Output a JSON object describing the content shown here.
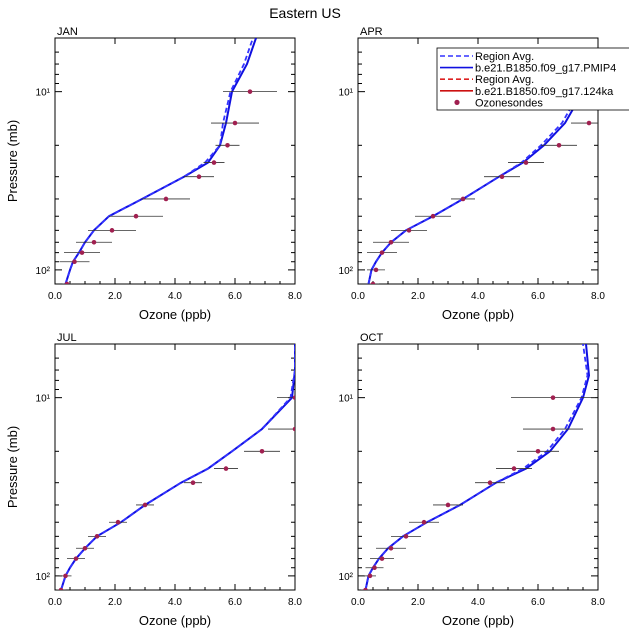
{
  "figure_title": "Eastern US",
  "colors": {
    "region_avg_1": "#3333ff",
    "model_1": "#1010e0",
    "region_avg_2": "#dd2222",
    "model_2": "#cc1111",
    "ozonesondes": "#a02050",
    "error_bar": "#333333"
  },
  "legend": {
    "entries": [
      {
        "label": "Region Avg.",
        "style": "dashed",
        "color": "#3333ff"
      },
      {
        "label": "b.e21.B1850.f09_g17.PMIP4",
        "style": "solid",
        "color": "#1010e0"
      },
      {
        "label": "Region Avg.",
        "style": "dashed",
        "color": "#dd2222"
      },
      {
        "label": "b.e21.B1850.f09_g17.124ka",
        "style": "solid",
        "color": "#cc1111"
      },
      {
        "label": "Ozonesondes",
        "style": "marker",
        "color": "#a02050"
      }
    ]
  },
  "chart_data": [
    {
      "panel": "JAN",
      "type": "line",
      "xlabel": "Ozone (ppb)",
      "ylabel": "Pressure (mb)",
      "xlim": [
        0,
        8
      ],
      "ylim_log": [
        120,
        5
      ],
      "x_ticks": [
        "0.0",
        "2.0",
        "4.0",
        "6.0",
        "8.0"
      ],
      "y_ticks": [
        "10²",
        "10¹"
      ],
      "series": [
        {
          "name": "b.e21.B1850.f09_g17.PMIP4",
          "style": "solid",
          "pressure": [
            120,
            100,
            90,
            80,
            70,
            60,
            50,
            40,
            30,
            25,
            20,
            15,
            10,
            7,
            5
          ],
          "values": [
            0.35,
            0.5,
            0.6,
            0.8,
            1.0,
            1.3,
            1.8,
            2.9,
            4.3,
            5.1,
            5.5,
            5.7,
            5.9,
            6.4,
            6.7
          ]
        },
        {
          "name": "Region Avg.",
          "style": "dashed",
          "pressure": [
            120,
            100,
            90,
            80,
            70,
            60,
            50,
            40,
            30,
            25,
            20,
            15,
            10,
            7,
            5
          ],
          "values": [
            0.35,
            0.5,
            0.6,
            0.8,
            1.0,
            1.3,
            1.8,
            2.9,
            4.3,
            5.0,
            5.5,
            5.6,
            5.85,
            6.3,
            6.6
          ]
        }
      ],
      "ozonesondes": [
        {
          "p": 120,
          "x": 0.4,
          "xerr": 0.15
        },
        {
          "p": 90,
          "x": 0.65,
          "xerr": 0.5
        },
        {
          "p": 80,
          "x": 0.9,
          "xerr": 0.6
        },
        {
          "p": 70,
          "x": 1.3,
          "xerr": 0.6
        },
        {
          "p": 60,
          "x": 1.9,
          "xerr": 0.8
        },
        {
          "p": 50,
          "x": 2.7,
          "xerr": 0.9
        },
        {
          "p": 40,
          "x": 3.7,
          "xerr": 0.8
        },
        {
          "p": 30,
          "x": 4.8,
          "xerr": 0.5
        },
        {
          "p": 25,
          "x": 5.3,
          "xerr": 0.35
        },
        {
          "p": 20,
          "x": 5.75,
          "xerr": 0.4
        },
        {
          "p": 15,
          "x": 6.0,
          "xerr": 0.8
        },
        {
          "p": 10,
          "x": 6.5,
          "xerr": 0.9
        }
      ]
    },
    {
      "panel": "APR",
      "type": "line",
      "xlabel": "Ozone (ppb)",
      "ylabel": "",
      "xlim": [
        0,
        8
      ],
      "ylim_log": [
        120,
        5
      ],
      "x_ticks": [
        "0.0",
        "2.0",
        "4.0",
        "6.0",
        "8.0"
      ],
      "y_ticks": [
        "10²",
        "10¹"
      ],
      "series": [
        {
          "name": "b.e21.B1850.f09_g17.PMIP4",
          "style": "solid",
          "pressure": [
            120,
            100,
            90,
            80,
            70,
            60,
            50,
            40,
            30,
            25,
            20,
            15,
            10,
            7,
            5
          ],
          "values": [
            0.35,
            0.45,
            0.6,
            0.8,
            1.1,
            1.6,
            2.5,
            3.5,
            4.7,
            5.5,
            6.2,
            6.9,
            7.5,
            8.0,
            8.3
          ]
        },
        {
          "name": "Region Avg.",
          "style": "dashed",
          "pressure": [
            120,
            100,
            90,
            80,
            70,
            60,
            50,
            40,
            30,
            25,
            20,
            15,
            10,
            7,
            5
          ],
          "values": [
            0.35,
            0.45,
            0.6,
            0.8,
            1.1,
            1.6,
            2.5,
            3.5,
            4.7,
            5.45,
            6.1,
            6.8,
            7.4,
            7.9,
            8.2
          ]
        }
      ],
      "ozonesondes": [
        {
          "p": 120,
          "x": 0.5,
          "xerr": 0.2
        },
        {
          "p": 100,
          "x": 0.6,
          "xerr": 0.3
        },
        {
          "p": 80,
          "x": 0.8,
          "xerr": 0.5
        },
        {
          "p": 70,
          "x": 1.1,
          "xerr": 0.6
        },
        {
          "p": 60,
          "x": 1.7,
          "xerr": 0.6
        },
        {
          "p": 50,
          "x": 2.5,
          "xerr": 0.6
        },
        {
          "p": 40,
          "x": 3.5,
          "xerr": 0.4
        },
        {
          "p": 30,
          "x": 4.8,
          "xerr": 0.6
        },
        {
          "p": 25,
          "x": 5.6,
          "xerr": 0.6
        },
        {
          "p": 20,
          "x": 6.7,
          "xerr": 0.6
        },
        {
          "p": 15,
          "x": 7.7,
          "xerr": 0.6
        }
      ]
    },
    {
      "panel": "JUL",
      "type": "line",
      "xlabel": "Ozone (ppb)",
      "ylabel": "Pressure (mb)",
      "xlim": [
        0,
        8
      ],
      "ylim_log": [
        120,
        5
      ],
      "x_ticks": [
        "0.0",
        "2.0",
        "4.0",
        "6.0",
        "8.0"
      ],
      "y_ticks": [
        "10²",
        "10¹"
      ],
      "series": [
        {
          "name": "b.e21.B1850.f09_g17.PMIP4",
          "style": "solid",
          "pressure": [
            120,
            100,
            90,
            80,
            70,
            60,
            50,
            40,
            30,
            25,
            20,
            15,
            10,
            7,
            5
          ],
          "values": [
            0.2,
            0.35,
            0.5,
            0.7,
            1.0,
            1.4,
            2.2,
            3.0,
            4.2,
            5.1,
            5.9,
            6.9,
            7.9,
            8.0,
            8.0
          ]
        },
        {
          "name": "Region Avg.",
          "style": "dashed",
          "pressure": [
            120,
            100,
            90,
            80,
            70,
            60,
            50,
            40,
            30,
            25,
            20,
            15,
            10,
            7,
            5
          ],
          "values": [
            0.2,
            0.35,
            0.5,
            0.7,
            1.0,
            1.4,
            2.2,
            3.0,
            4.2,
            5.1,
            5.9,
            6.9,
            7.85,
            8.0,
            8.0
          ]
        }
      ],
      "ozonesondes": [
        {
          "p": 120,
          "x": 0.2,
          "xerr": 0.15
        },
        {
          "p": 100,
          "x": 0.35,
          "xerr": 0.2
        },
        {
          "p": 80,
          "x": 0.7,
          "xerr": 0.3
        },
        {
          "p": 70,
          "x": 1.0,
          "xerr": 0.3
        },
        {
          "p": 60,
          "x": 1.4,
          "xerr": 0.3
        },
        {
          "p": 50,
          "x": 2.1,
          "xerr": 0.3
        },
        {
          "p": 40,
          "x": 3.0,
          "xerr": 0.3
        },
        {
          "p": 30,
          "x": 4.6,
          "xerr": 0.3
        },
        {
          "p": 25,
          "x": 5.7,
          "xerr": 0.4
        },
        {
          "p": 20,
          "x": 6.9,
          "xerr": 0.6
        },
        {
          "p": 15,
          "x": 8.0,
          "xerr": 0.9
        },
        {
          "p": 10,
          "x": 8.0,
          "xerr": 0.6
        }
      ]
    },
    {
      "panel": "OCT",
      "type": "line",
      "xlabel": "Ozone (ppb)",
      "ylabel": "",
      "xlim": [
        0,
        8
      ],
      "ylim_log": [
        120,
        5
      ],
      "x_ticks": [
        "0.0",
        "2.0",
        "4.0",
        "6.0",
        "8.0"
      ],
      "y_ticks": [
        "10²",
        "10¹"
      ],
      "series": [
        {
          "name": "b.e21.B1850.f09_g17.PMIP4",
          "style": "solid",
          "pressure": [
            120,
            100,
            90,
            80,
            70,
            60,
            50,
            40,
            30,
            25,
            20,
            15,
            10,
            7.5,
            5
          ],
          "values": [
            0.25,
            0.35,
            0.5,
            0.7,
            1.0,
            1.5,
            2.3,
            3.4,
            4.6,
            5.6,
            6.4,
            7.0,
            7.5,
            7.7,
            7.6
          ]
        },
        {
          "name": "Region Avg.",
          "style": "dashed",
          "pressure": [
            120,
            100,
            90,
            80,
            70,
            60,
            50,
            40,
            30,
            25,
            20,
            15,
            10,
            7.5,
            5
          ],
          "values": [
            0.25,
            0.35,
            0.5,
            0.7,
            1.0,
            1.5,
            2.3,
            3.4,
            4.6,
            5.5,
            6.3,
            6.9,
            7.45,
            7.65,
            7.5
          ]
        }
      ],
      "ozonesondes": [
        {
          "p": 120,
          "x": 0.25,
          "xerr": 0.15
        },
        {
          "p": 100,
          "x": 0.4,
          "xerr": 0.2
        },
        {
          "p": 90,
          "x": 0.55,
          "xerr": 0.3
        },
        {
          "p": 80,
          "x": 0.8,
          "xerr": 0.4
        },
        {
          "p": 70,
          "x": 1.1,
          "xerr": 0.5
        },
        {
          "p": 60,
          "x": 1.6,
          "xerr": 0.5
        },
        {
          "p": 50,
          "x": 2.2,
          "xerr": 0.5
        },
        {
          "p": 40,
          "x": 3.0,
          "xerr": 0.5
        },
        {
          "p": 30,
          "x": 4.4,
          "xerr": 0.5
        },
        {
          "p": 25,
          "x": 5.2,
          "xerr": 0.6
        },
        {
          "p": 20,
          "x": 6.0,
          "xerr": 0.7
        },
        {
          "p": 15,
          "x": 6.5,
          "xerr": 1.0
        },
        {
          "p": 10,
          "x": 6.5,
          "xerr": 1.4
        }
      ]
    }
  ]
}
